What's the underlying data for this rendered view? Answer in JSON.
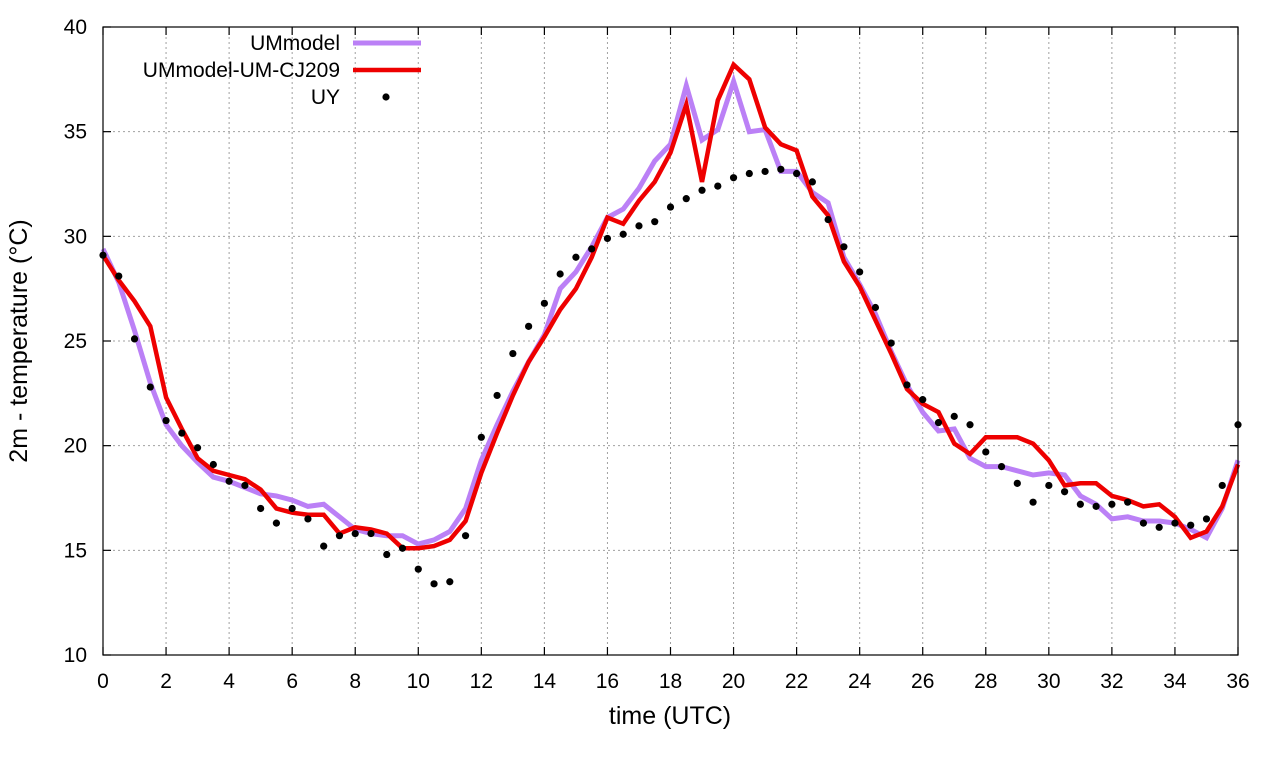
{
  "chart_data": {
    "type": "line",
    "xlabel": "time (UTC)",
    "ylabel": "2m - temperature (°C)",
    "xlim": [
      0,
      36
    ],
    "ylim": [
      10,
      40
    ],
    "x_ticks": [
      "0",
      "2",
      "4",
      "6",
      "8",
      "10",
      "12",
      "14",
      "16",
      "18",
      "20",
      "22",
      "24",
      "26",
      "28",
      "30",
      "32",
      "34",
      "36"
    ],
    "y_ticks": [
      "10",
      "15",
      "20",
      "25",
      "30",
      "35",
      "40"
    ],
    "grid": true,
    "legend_position": "top-left",
    "colors": {
      "UMmodel": "#bb80f6",
      "UMmodel-UM-CJ209": "#ee0000",
      "UY": "#000000"
    },
    "series": [
      {
        "name": "UMmodel",
        "style": "line",
        "x": [
          0,
          0.5,
          1,
          1.5,
          2,
          2.5,
          3,
          3.5,
          4,
          4.5,
          5,
          5.5,
          6,
          6.5,
          7,
          7.5,
          8,
          8.5,
          9,
          9.5,
          10,
          10.5,
          11,
          11.5,
          12,
          12.5,
          13,
          13.5,
          14,
          14.5,
          15,
          15.5,
          16,
          16.5,
          17,
          17.5,
          18,
          18.5,
          19,
          19.5,
          20,
          20.5,
          21,
          21.5,
          22,
          22.5,
          23,
          23.5,
          24,
          24.5,
          25,
          25.5,
          26,
          26.5,
          27,
          27.5,
          28,
          28.5,
          29,
          29.5,
          30,
          30.5,
          31,
          31.5,
          32,
          32.5,
          33,
          33.5,
          34,
          34.5,
          35,
          35.5,
          36
        ],
        "y": [
          29.4,
          27.8,
          25.5,
          23.0,
          21.0,
          20.0,
          19.2,
          18.5,
          18.3,
          18.0,
          17.7,
          17.6,
          17.4,
          17.1,
          17.2,
          16.6,
          16.0,
          15.8,
          15.7,
          15.7,
          15.3,
          15.5,
          15.9,
          17.0,
          19.3,
          21.0,
          22.6,
          24.0,
          25.3,
          27.5,
          28.3,
          29.5,
          30.9,
          31.3,
          32.3,
          33.6,
          34.4,
          37.2,
          34.6,
          35.1,
          37.4,
          35.0,
          35.1,
          33.1,
          33.1,
          32.1,
          31.6,
          29.0,
          27.7,
          26.3,
          24.5,
          22.9,
          21.6,
          20.7,
          20.8,
          19.4,
          19.0,
          19.0,
          18.8,
          18.6,
          18.7,
          18.6,
          17.6,
          17.2,
          16.5,
          16.6,
          16.4,
          16.4,
          16.3,
          16.0,
          15.6,
          17.0,
          19.3
        ]
      },
      {
        "name": "UMmodel-UM-CJ209",
        "style": "line",
        "x": [
          0,
          0.5,
          1,
          1.5,
          2,
          2.5,
          3,
          3.5,
          4,
          4.5,
          5,
          5.5,
          6,
          6.5,
          7,
          7.5,
          8,
          8.5,
          9,
          9.5,
          10,
          10.5,
          11,
          11.5,
          12,
          12.5,
          13,
          13.5,
          14,
          14.5,
          15,
          15.5,
          16,
          16.5,
          17,
          17.5,
          18,
          18.5,
          19,
          19.5,
          20,
          20.5,
          21,
          21.5,
          22,
          22.5,
          23,
          23.5,
          24,
          24.5,
          25,
          25.5,
          26,
          26.5,
          27,
          27.5,
          28,
          28.5,
          29,
          29.5,
          30,
          30.5,
          31,
          31.5,
          32,
          32.5,
          33,
          33.5,
          34,
          34.5,
          35,
          35.5,
          36
        ],
        "y": [
          29.1,
          27.9,
          26.9,
          25.7,
          22.3,
          20.8,
          19.4,
          18.8,
          18.6,
          18.4,
          17.9,
          17.0,
          16.8,
          16.7,
          16.7,
          15.8,
          16.1,
          16.0,
          15.8,
          15.1,
          15.1,
          15.2,
          15.5,
          16.4,
          18.7,
          20.6,
          22.4,
          24.0,
          25.2,
          26.5,
          27.5,
          29.0,
          30.9,
          30.6,
          31.7,
          32.6,
          34.0,
          36.3,
          32.6,
          36.5,
          38.2,
          37.5,
          35.2,
          34.4,
          34.1,
          31.9,
          31.0,
          28.8,
          27.6,
          26.0,
          24.4,
          22.7,
          22.0,
          21.6,
          20.1,
          19.6,
          20.4,
          20.4,
          20.4,
          20.1,
          19.3,
          18.1,
          18.2,
          18.2,
          17.6,
          17.4,
          17.1,
          17.2,
          16.6,
          15.6,
          15.9,
          17.1,
          19.1
        ]
      },
      {
        "name": "UY",
        "style": "points",
        "x": [
          0,
          0.5,
          1,
          1.5,
          2,
          2.5,
          3,
          3.5,
          4,
          4.5,
          5,
          5.5,
          6,
          6.5,
          7,
          7.5,
          8,
          8.5,
          9,
          9.5,
          10,
          10.5,
          11,
          11.5,
          12,
          12.5,
          13,
          13.5,
          14,
          14.5,
          15,
          15.5,
          16,
          16.5,
          17,
          17.5,
          18,
          18.5,
          19,
          19.5,
          20,
          20.5,
          21,
          21.5,
          22,
          22.5,
          23,
          23.5,
          24,
          24.5,
          25,
          25.5,
          26,
          26.5,
          27,
          27.5,
          28,
          28.5,
          29,
          29.5,
          30,
          30.5,
          31,
          31.5,
          32,
          32.5,
          33,
          33.5,
          34,
          34.5,
          35,
          35.5,
          36
        ],
        "y": [
          29.1,
          28.1,
          25.1,
          22.8,
          21.2,
          20.6,
          19.9,
          19.1,
          18.3,
          18.1,
          17.0,
          16.3,
          17.0,
          16.5,
          15.2,
          15.7,
          15.8,
          15.8,
          14.8,
          15.1,
          14.1,
          13.4,
          13.5,
          15.7,
          20.4,
          22.4,
          24.4,
          25.7,
          26.8,
          28.2,
          29.0,
          29.4,
          29.9,
          30.1,
          30.5,
          30.7,
          31.4,
          31.8,
          32.2,
          32.4,
          32.8,
          33.0,
          33.1,
          33.2,
          33.0,
          32.6,
          30.8,
          29.5,
          28.3,
          26.6,
          24.9,
          22.9,
          22.2,
          21.1,
          21.4,
          21.0,
          19.7,
          19.0,
          18.2,
          17.3,
          18.1,
          17.8,
          17.2,
          17.1,
          17.2,
          17.3,
          16.3,
          16.1,
          16.3,
          16.2,
          16.5,
          18.1,
          21.0
        ]
      }
    ]
  }
}
